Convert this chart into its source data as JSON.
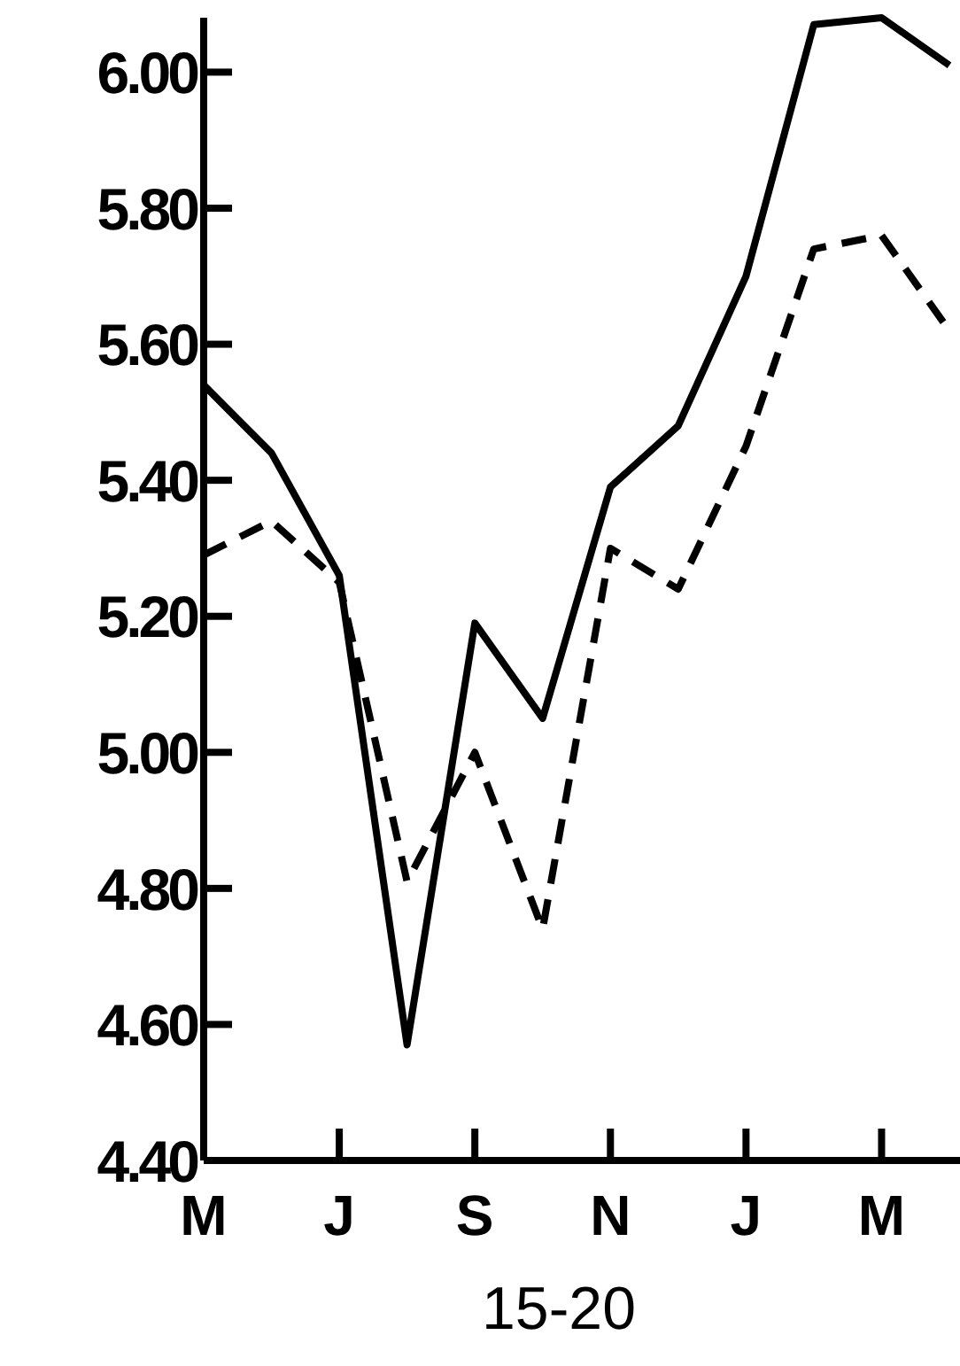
{
  "chart_data": {
    "type": "line",
    "xlabel": "15-20",
    "categories": [
      "M",
      null,
      "J",
      null,
      "S",
      null,
      "N",
      null,
      "J",
      null,
      "M",
      null
    ],
    "series": [
      {
        "color": "#000000",
        "line_style": "solid",
        "values": [
          5.54,
          5.44,
          5.26,
          4.57,
          5.19,
          5.05,
          5.39,
          5.48,
          5.7,
          6.07,
          6.08,
          6.01
        ]
      },
      {
        "color": "#000000",
        "line_style": "dashed",
        "values": [
          5.29,
          5.34,
          5.25,
          4.81,
          5.0,
          4.74,
          5.3,
          5.24,
          5.45,
          5.74,
          5.76,
          5.62
        ]
      }
    ],
    "ylim": [
      4.4,
      6.08
    ],
    "yticks": [
      {
        "value": 4.4,
        "label": "4.40"
      },
      {
        "value": 4.6,
        "label": "4.60"
      },
      {
        "value": 4.8,
        "label": "4.80"
      },
      {
        "value": 5.0,
        "label": "5.00"
      },
      {
        "value": 5.2,
        "label": "5.20"
      },
      {
        "value": 5.4,
        "label": "5.40"
      },
      {
        "value": 5.6,
        "label": "5.60"
      },
      {
        "value": 5.8,
        "label": "5.80"
      },
      {
        "value": 6.0,
        "label": "6.00"
      }
    ],
    "grid": false,
    "marker": "none"
  }
}
